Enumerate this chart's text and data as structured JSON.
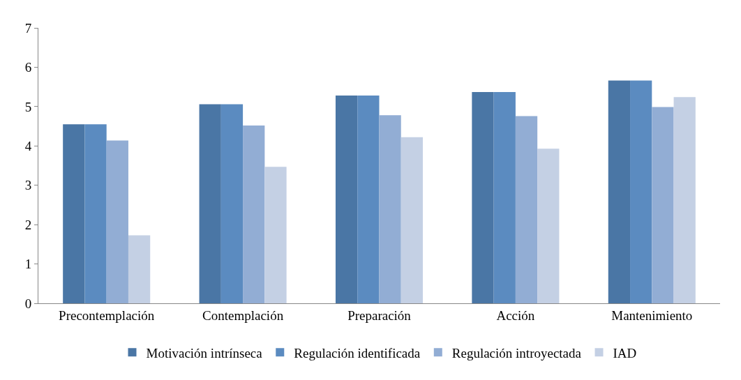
{
  "chart_data": {
    "type": "bar",
    "categories": [
      "Precontemplación",
      "Contemplación",
      "Preparación",
      "Acción",
      "Mantenimiento"
    ],
    "series": [
      {
        "name": "Motivación intrínseca",
        "color": "#4a76a5",
        "values": [
          4.55,
          5.06,
          5.28,
          5.37,
          5.66
        ]
      },
      {
        "name": "Regulación identificada",
        "color": "#5b8bc0",
        "values": [
          4.55,
          5.06,
          5.28,
          5.37,
          5.66
        ]
      },
      {
        "name": "Regulación introyectada",
        "color": "#92add4",
        "values": [
          4.14,
          4.52,
          4.78,
          4.76,
          4.99
        ]
      },
      {
        "name": "IAD",
        "color": "#c4d0e4",
        "values": [
          1.73,
          3.47,
          4.22,
          3.93,
          5.24
        ]
      }
    ],
    "ylim": [
      0,
      7
    ],
    "yticks": [
      0,
      1,
      2,
      3,
      4,
      5,
      6,
      7
    ],
    "grid": false,
    "legend": "bottom"
  }
}
